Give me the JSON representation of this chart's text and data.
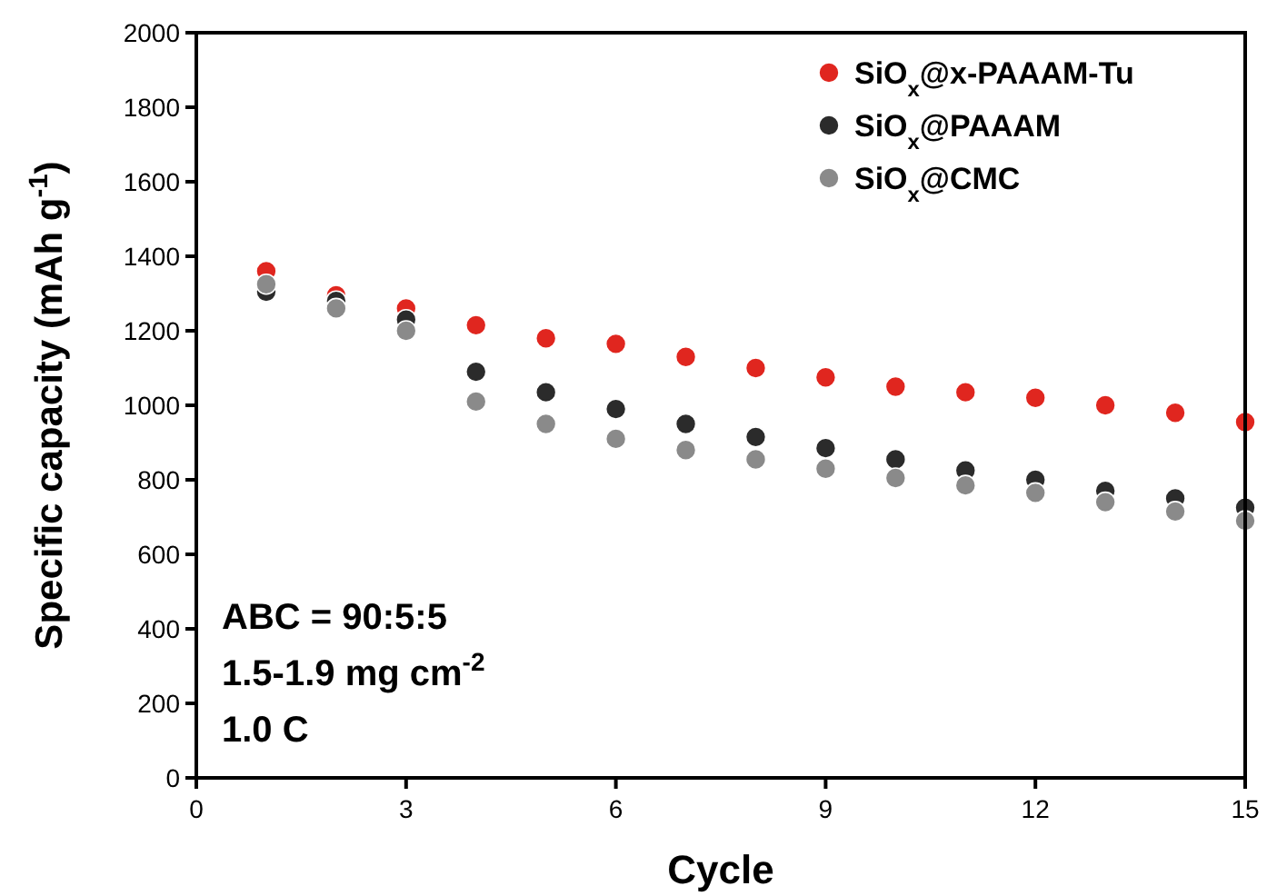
{
  "chart_data": {
    "type": "scatter",
    "xlabel": "Cycle",
    "ylabel": "Specific capacity (mAh g$^{-1}$)",
    "x": [
      1,
      2,
      3,
      4,
      5,
      6,
      7,
      8,
      9,
      10,
      11,
      12,
      13,
      14,
      15
    ],
    "xlim": [
      0,
      15
    ],
    "xticks": [
      0,
      3,
      6,
      9,
      12,
      15
    ],
    "ylim": [
      0,
      2000
    ],
    "yticks": [
      0,
      200,
      400,
      600,
      800,
      1000,
      1200,
      1400,
      1600,
      1800,
      2000
    ],
    "marker": "circle",
    "legend": "top right",
    "grid": false,
    "series": [
      {
        "name": "SiO$_{x}$@x-PAAAM-Tu",
        "color": "#e0261f",
        "values": [
          1360,
          1295,
          1260,
          1215,
          1180,
          1165,
          1130,
          1100,
          1075,
          1050,
          1035,
          1020,
          1000,
          980,
          955
        ]
      },
      {
        "name": "SiO$_{x}$@PAAAM",
        "color": "#2b2b2b",
        "values": [
          1305,
          1280,
          1230,
          1090,
          1035,
          990,
          950,
          915,
          885,
          855,
          825,
          800,
          770,
          750,
          725
        ]
      },
      {
        "name": "SiO$_{x}$@CMC",
        "color": "#8a8a8a",
        "values": [
          1325,
          1260,
          1200,
          1010,
          950,
          910,
          880,
          855,
          830,
          805,
          785,
          765,
          740,
          715,
          690
        ]
      }
    ],
    "annotations": [
      "ABC = 90:5:5",
      "1.5-1.9 mg cm$^{-2}$",
      "1.0 C"
    ]
  }
}
